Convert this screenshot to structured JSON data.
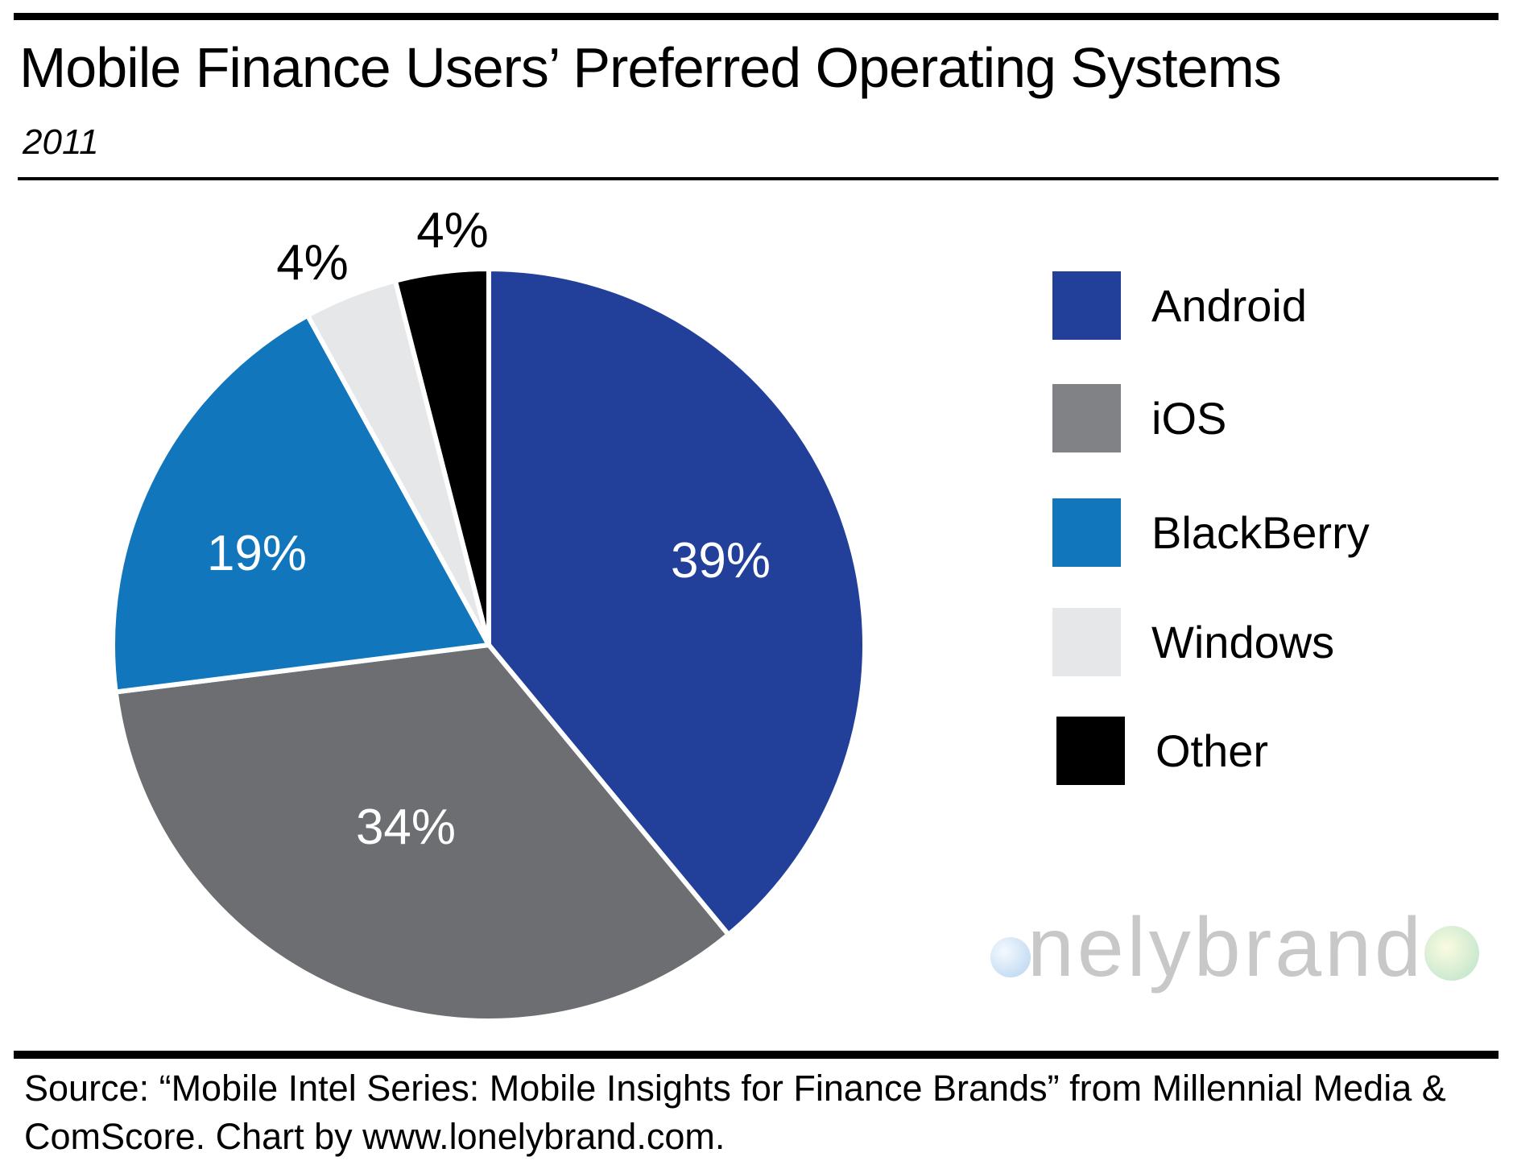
{
  "chart_data": {
    "type": "pie",
    "title": "Mobile Finance Users’ Preferred Operating Systems",
    "subtitle": "2011",
    "slices": [
      {
        "label": "Android",
        "value": 39,
        "display": "39%",
        "color": "#223f99"
      },
      {
        "label": "iOS",
        "value": 34,
        "display": "34%",
        "color": "#6d6e71"
      },
      {
        "label": "BlackBerry",
        "value": 19,
        "display": "19%",
        "color": "#1176bc"
      },
      {
        "label": "Windows",
        "value": 4,
        "display": "4%",
        "color": "#e6e7e8"
      },
      {
        "label": "Other",
        "value": 4,
        "display": "4%",
        "color": "#000000"
      }
    ],
    "legend_position": "right",
    "source": "Source: “Mobile Intel Series: Mobile Insights for Finance Brands” from Millennial Media & ComScore. Chart by www.lonelybrand.com.",
    "logo_text": "lonelybrand"
  }
}
